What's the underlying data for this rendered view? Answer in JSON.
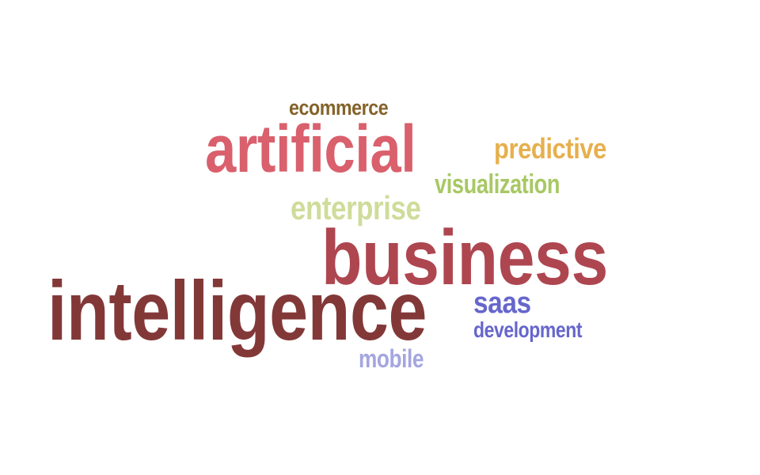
{
  "words": [
    {
      "id": "ecommerce",
      "text": "ecommerce",
      "color": "#84622a"
    },
    {
      "id": "artificial",
      "text": "artificial",
      "color": "#d9606c"
    },
    {
      "id": "predictive",
      "text": "predictive",
      "color": "#e6b04e"
    },
    {
      "id": "visualization",
      "text": "visualization",
      "color": "#a8c864"
    },
    {
      "id": "enterprise",
      "text": "enterprise",
      "color": "#cfdc9a"
    },
    {
      "id": "business",
      "text": "business",
      "color": "#ae4650"
    },
    {
      "id": "intelligence",
      "text": "intelligence",
      "color": "#833838"
    },
    {
      "id": "saas",
      "text": "saas",
      "color": "#6666cc"
    },
    {
      "id": "development",
      "text": "development",
      "color": "#6666cc"
    },
    {
      "id": "mobile",
      "text": "mobile",
      "color": "#a4a6e0"
    }
  ]
}
